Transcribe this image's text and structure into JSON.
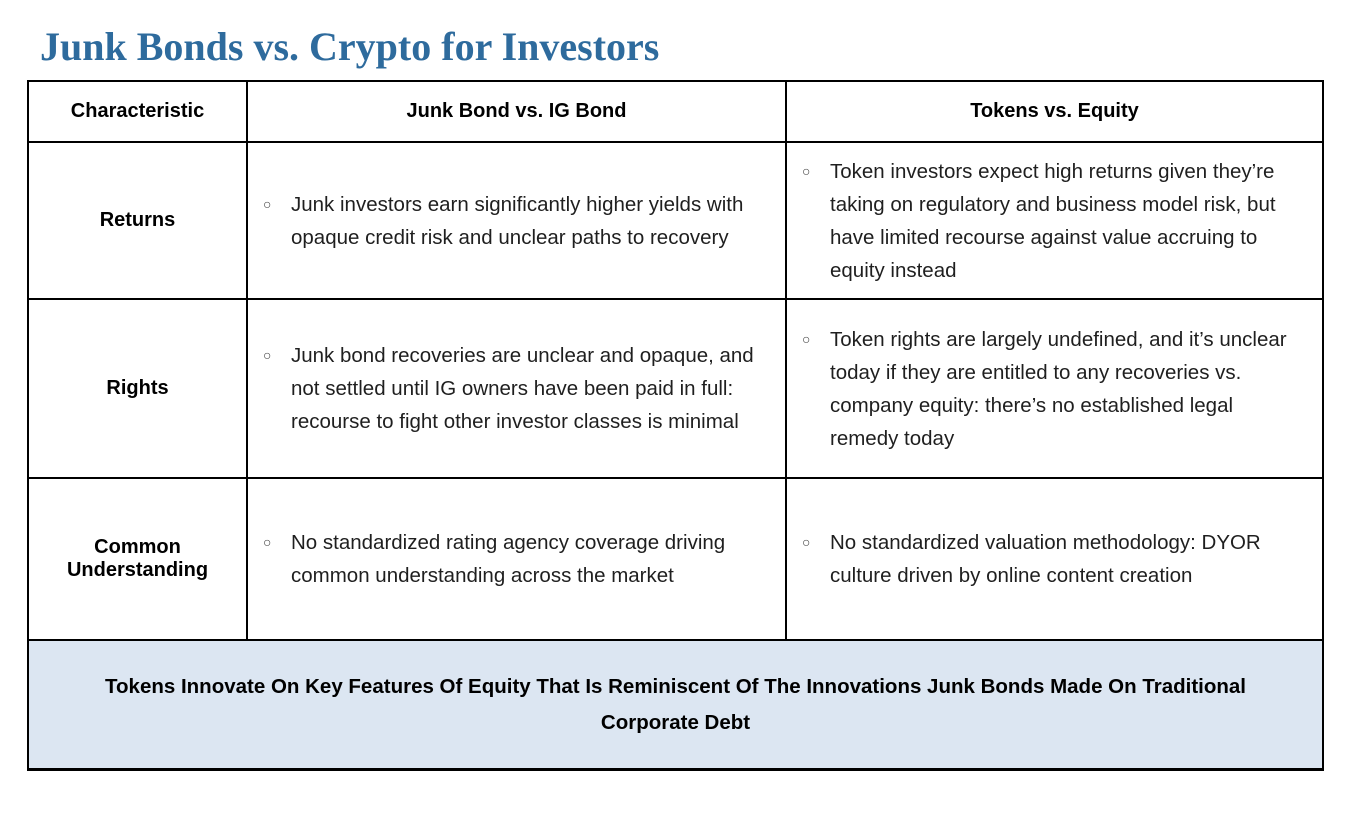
{
  "page": {
    "title": "Junk Bonds vs. Crypto for Investors"
  },
  "colors": {
    "title_text": "#2E6B9D",
    "footer_bg": "#DCE6F2",
    "border": "#000000",
    "body_text": "#1f1f1f"
  },
  "table": {
    "bullet_glyph": "○",
    "headers": [
      "Characteristic",
      "Junk Bond vs. IG Bond",
      "Tokens vs. Equity"
    ],
    "rows": [
      {
        "label": "Returns",
        "junk_bond": "Junk investors earn significantly higher yields with opaque credit risk and unclear paths to recovery",
        "tokens": "Token investors expect high returns given they’re taking on regulatory and business model risk, but have limited recourse against value accruing to equity instead"
      },
      {
        "label": "Rights",
        "junk_bond": "Junk bond recoveries are unclear and opaque, and not settled until IG owners have been paid in full: recourse to fight other investor classes is minimal",
        "tokens": "Token rights are largely undefined, and it’s unclear today if they are entitled to any recoveries vs. company equity: there’s no established legal remedy today"
      },
      {
        "label": "Common Understanding",
        "junk_bond": "No standardized rating agency coverage driving common understanding across the market",
        "tokens": "No standardized valuation methodology: DYOR culture driven by online content creation"
      }
    ],
    "footer": "Tokens Innovate On Key Features Of Equity That Is Reminiscent Of The Innovations Junk Bonds Made On Traditional Corporate Debt"
  }
}
